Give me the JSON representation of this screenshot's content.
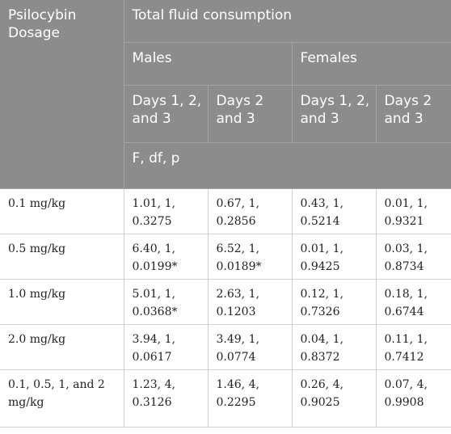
{
  "header": {
    "row_label": "Psilocybin Dosage",
    "group_title": "Total fluid consumption",
    "males": "Males",
    "females": "Females",
    "days_123": "Days 1, 2, and 3",
    "days_23": "Days 2 and 3",
    "stat": "F, df, p"
  },
  "rows": [
    {
      "dosage": "0.1 mg/kg",
      "m123": "1.01, 1, 0.3275",
      "m23": "0.67, 1, 0.2856",
      "f123": "0.43, 1, 0.5214",
      "f23": "0.01, 1, 0.9321"
    },
    {
      "dosage": "0.5 mg/kg",
      "m123": "6.40, 1, 0.0199*",
      "m23": "6.52, 1, 0.0189*",
      "f123": "0.01, 1, 0.9425",
      "f23": "0.03, 1, 0.8734"
    },
    {
      "dosage": "1.0 mg/kg",
      "m123": "5.01, 1, 0.0368*",
      "m23": "2.63, 1, 0.1203",
      "f123": "0.12, 1, 0.7326",
      "f23": "0.18, 1, 0.6744"
    },
    {
      "dosage": "2.0 mg/kg",
      "m123": "3.94, 1, 0.0617",
      "m23": "3.49, 1, 0.0774",
      "f123": "0.04, 1, 0.8372",
      "f23": "0.11, 1, 0.7412"
    },
    {
      "dosage": "0.1, 0.5, 1, and 2 mg/kg",
      "m123": "1.23, 4, 0.3126",
      "m23": "1.46, 4, 0.2295",
      "f123": "0.26, 4, 0.9025",
      "f23": "0.07, 4, 0.9908"
    }
  ]
}
